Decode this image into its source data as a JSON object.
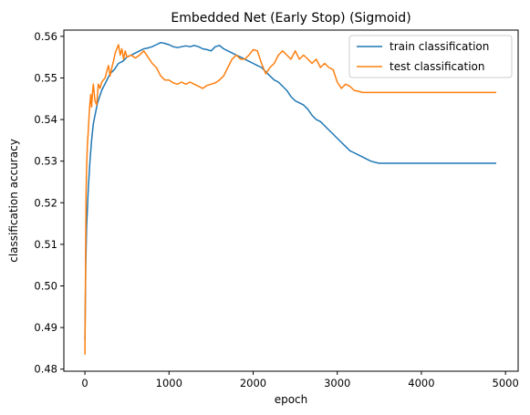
{
  "chart_data": {
    "type": "line",
    "title": "Embedded Net (Early Stop) (Sigmoid)",
    "xlabel": "epoch",
    "ylabel": "classification accuracy",
    "xlim": [
      -250,
      5150
    ],
    "ylim": [
      0.4795,
      0.5615
    ],
    "xticks": [
      0,
      1000,
      2000,
      3000,
      4000,
      5000
    ],
    "xtick_labels": [
      "0",
      "1000",
      "2000",
      "3000",
      "4000",
      "5000"
    ],
    "yticks": [
      0.48,
      0.49,
      0.5,
      0.51,
      0.52,
      0.53,
      0.54,
      0.55,
      0.56
    ],
    "ytick_labels": [
      "0.48",
      "0.49",
      "0.50",
      "0.51",
      "0.52",
      "0.53",
      "0.54",
      "0.55",
      "0.56"
    ],
    "grid": false,
    "legend_position": "top-right",
    "series": [
      {
        "name": "train classification",
        "color": "#1f77b4",
        "x": [
          0,
          10,
          20,
          40,
          60,
          80,
          100,
          150,
          200,
          250,
          300,
          350,
          400,
          450,
          500,
          550,
          600,
          650,
          700,
          750,
          800,
          850,
          900,
          950,
          1000,
          1050,
          1100,
          1150,
          1200,
          1250,
          1300,
          1350,
          1400,
          1450,
          1500,
          1550,
          1600,
          1650,
          1700,
          1750,
          1800,
          1850,
          1900,
          1950,
          2000,
          2050,
          2100,
          2150,
          2200,
          2250,
          2300,
          2350,
          2400,
          2450,
          2500,
          2550,
          2600,
          2650,
          2700,
          2750,
          2800,
          2850,
          2900,
          2950,
          3000,
          3050,
          3100,
          3150,
          3200,
          3250,
          3300,
          3350,
          3400,
          3450,
          3500,
          3600,
          3800,
          4000,
          4200,
          4400,
          4600,
          4800,
          4890
        ],
        "y": [
          0.487,
          0.505,
          0.514,
          0.523,
          0.53,
          0.535,
          0.539,
          0.544,
          0.547,
          0.549,
          0.551,
          0.552,
          0.5535,
          0.554,
          0.555,
          0.5555,
          0.556,
          0.5565,
          0.557,
          0.5572,
          0.5575,
          0.558,
          0.5585,
          0.5583,
          0.558,
          0.5575,
          0.5573,
          0.5575,
          0.5577,
          0.5575,
          0.5578,
          0.5575,
          0.557,
          0.5568,
          0.5565,
          0.5575,
          0.5578,
          0.557,
          0.5565,
          0.556,
          0.5555,
          0.555,
          0.5545,
          0.554,
          0.5535,
          0.553,
          0.5525,
          0.5515,
          0.5505,
          0.5495,
          0.549,
          0.548,
          0.547,
          0.5455,
          0.5445,
          0.544,
          0.5435,
          0.5425,
          0.541,
          0.54,
          0.5395,
          0.5385,
          0.5375,
          0.5365,
          0.5355,
          0.5345,
          0.5335,
          0.5325,
          0.532,
          0.5315,
          0.531,
          0.5305,
          0.53,
          0.5297,
          0.5295,
          0.5295,
          0.5295,
          0.5295,
          0.5295,
          0.5295,
          0.5295,
          0.5295,
          0.5295
        ]
      },
      {
        "name": "test classification",
        "color": "#ff7f0e",
        "x": [
          0,
          5,
          10,
          15,
          20,
          30,
          40,
          50,
          60,
          70,
          80,
          90,
          100,
          120,
          140,
          160,
          180,
          200,
          220,
          240,
          260,
          280,
          300,
          320,
          340,
          360,
          380,
          400,
          420,
          440,
          460,
          480,
          500,
          550,
          600,
          650,
          700,
          750,
          800,
          850,
          900,
          950,
          1000,
          1050,
          1100,
          1150,
          1200,
          1250,
          1300,
          1350,
          1400,
          1450,
          1500,
          1550,
          1600,
          1650,
          1700,
          1750,
          1800,
          1850,
          1900,
          1950,
          2000,
          2050,
          2100,
          2150,
          2200,
          2250,
          2300,
          2350,
          2400,
          2450,
          2500,
          2550,
          2600,
          2650,
          2700,
          2750,
          2800,
          2850,
          2900,
          2950,
          3000,
          3050,
          3100,
          3150,
          3200,
          3250,
          3300,
          3400,
          3600,
          3800,
          4000,
          4200,
          4400,
          4600,
          4890
        ],
        "y": [
          0.4835,
          0.495,
          0.512,
          0.523,
          0.528,
          0.534,
          0.537,
          0.541,
          0.544,
          0.546,
          0.543,
          0.5465,
          0.5485,
          0.5445,
          0.5435,
          0.5485,
          0.5475,
          0.549,
          0.5495,
          0.55,
          0.5515,
          0.553,
          0.5505,
          0.5525,
          0.554,
          0.556,
          0.557,
          0.558,
          0.5555,
          0.557,
          0.5545,
          0.5565,
          0.555,
          0.5555,
          0.5548,
          0.5555,
          0.5565,
          0.555,
          0.5535,
          0.5525,
          0.5505,
          0.5495,
          0.5495,
          0.5488,
          0.5485,
          0.549,
          0.5485,
          0.549,
          0.5485,
          0.548,
          0.5475,
          0.5482,
          0.5485,
          0.5488,
          0.5495,
          0.5505,
          0.5525,
          0.5545,
          0.5555,
          0.5545,
          0.5545,
          0.5555,
          0.5568,
          0.5565,
          0.5535,
          0.551,
          0.5525,
          0.5535,
          0.5555,
          0.5565,
          0.5555,
          0.5545,
          0.5565,
          0.5545,
          0.5555,
          0.5545,
          0.5535,
          0.5545,
          0.5525,
          0.5535,
          0.5525,
          0.552,
          0.549,
          0.5475,
          0.5485,
          0.548,
          0.547,
          0.5468,
          0.5465,
          0.5465,
          0.5465,
          0.5465,
          0.5465,
          0.5465,
          0.5465,
          0.5465,
          0.5465
        ]
      }
    ]
  }
}
